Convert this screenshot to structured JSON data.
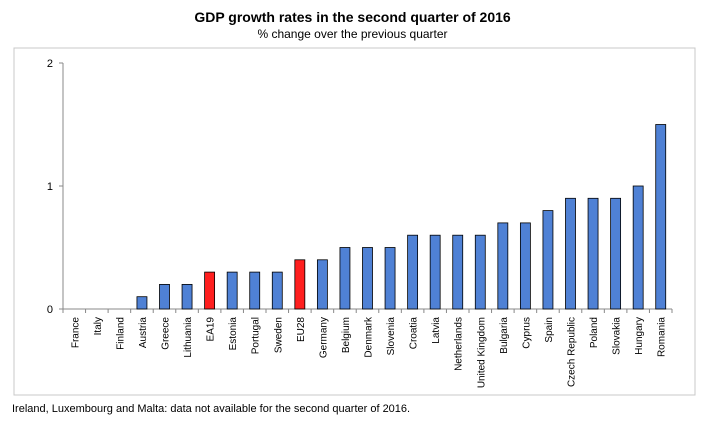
{
  "chart_data": {
    "type": "bar",
    "title": "GDP growth rates in the second quarter of 2016",
    "subtitle": "% change over the previous quarter",
    "xlabel": "",
    "ylabel": "",
    "ylim": [
      0,
      2
    ],
    "yticks": [
      "0",
      "1",
      "2"
    ],
    "grid": false,
    "categories": [
      "France",
      "Italy",
      "Finland",
      "Austria",
      "Greece",
      "Lithuania",
      "EA19",
      "Estonia",
      "Portugal",
      "Sweden",
      "EU28",
      "Germany",
      "Belgium",
      "Denmark",
      "Slovenia",
      "Croatia",
      "Latvia",
      "Netherlands",
      "United Kingdom",
      "Bulgaria",
      "Cyprus",
      "Spain",
      "Czech Republic",
      "Poland",
      "Slovakia",
      "Hungary",
      "Romania"
    ],
    "values": [
      0.0,
      0.0,
      0.0,
      0.1,
      0.2,
      0.2,
      0.3,
      0.3,
      0.3,
      0.3,
      0.4,
      0.4,
      0.5,
      0.5,
      0.5,
      0.6,
      0.6,
      0.6,
      0.6,
      0.7,
      0.7,
      0.8,
      0.9,
      0.9,
      0.9,
      1.0,
      1.5
    ],
    "highlight": [
      "EA19",
      "EU28"
    ],
    "colors": {
      "bar": "#4f81d5",
      "highlight": "#ff1f1f",
      "border": "#000000"
    }
  },
  "footnote": "Ireland, Luxembourg and Malta: data not available for the second quarter of 2016."
}
